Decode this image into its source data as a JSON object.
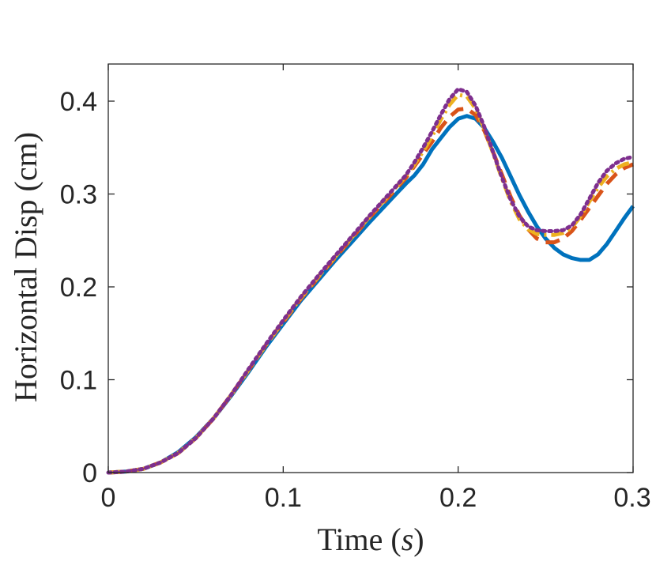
{
  "chart_data": {
    "type": "line",
    "title": "",
    "xlabel_prefix": "Time (",
    "xlabel_var": "s",
    "xlabel_suffix": ")",
    "ylabel": "Horizontal Disp (cm)",
    "xlim": [
      0,
      0.3
    ],
    "ylim": [
      0,
      0.44
    ],
    "xticks": [
      0,
      0.1,
      0.2,
      0.3
    ],
    "xtick_labels": [
      "0",
      "0.1",
      "0.2",
      "0.3"
    ],
    "yticks": [
      0,
      0.1,
      0.2,
      0.3,
      0.4
    ],
    "ytick_labels": [
      "0",
      "0.1",
      "0.2",
      "0.3",
      "0.4"
    ],
    "grid": false,
    "legend": null,
    "series": [
      {
        "name": "series-1",
        "color": "#0072BD",
        "style": "solid",
        "x": [
          0,
          0.01,
          0.02,
          0.03,
          0.04,
          0.05,
          0.06,
          0.07,
          0.08,
          0.09,
          0.1,
          0.11,
          0.12,
          0.13,
          0.14,
          0.15,
          0.16,
          0.17,
          0.175,
          0.18,
          0.185,
          0.19,
          0.195,
          0.2,
          0.205,
          0.21,
          0.215,
          0.22,
          0.225,
          0.23,
          0.235,
          0.24,
          0.245,
          0.25,
          0.255,
          0.26,
          0.265,
          0.27,
          0.275,
          0.28,
          0.285,
          0.29,
          0.295,
          0.3
        ],
        "y": [
          0,
          0.001,
          0.004,
          0.011,
          0.022,
          0.038,
          0.058,
          0.082,
          0.108,
          0.135,
          0.16,
          0.185,
          0.207,
          0.229,
          0.25,
          0.271,
          0.291,
          0.311,
          0.32,
          0.332,
          0.348,
          0.36,
          0.372,
          0.381,
          0.384,
          0.381,
          0.371,
          0.356,
          0.339,
          0.319,
          0.299,
          0.281,
          0.265,
          0.252,
          0.242,
          0.235,
          0.231,
          0.229,
          0.229,
          0.235,
          0.246,
          0.26,
          0.274,
          0.287
        ]
      },
      {
        "name": "series-2",
        "color": "#D95319",
        "style": "dashed",
        "x": [
          0,
          0.01,
          0.02,
          0.03,
          0.04,
          0.05,
          0.06,
          0.07,
          0.08,
          0.09,
          0.1,
          0.11,
          0.12,
          0.13,
          0.14,
          0.15,
          0.16,
          0.17,
          0.175,
          0.18,
          0.185,
          0.19,
          0.195,
          0.2,
          0.205,
          0.21,
          0.215,
          0.22,
          0.225,
          0.23,
          0.235,
          0.24,
          0.245,
          0.25,
          0.255,
          0.26,
          0.265,
          0.27,
          0.275,
          0.28,
          0.285,
          0.29,
          0.295,
          0.3
        ],
        "y": [
          0,
          0.001,
          0.004,
          0.011,
          0.021,
          0.037,
          0.058,
          0.083,
          0.11,
          0.137,
          0.162,
          0.187,
          0.21,
          0.232,
          0.254,
          0.276,
          0.296,
          0.317,
          0.33,
          0.343,
          0.356,
          0.371,
          0.383,
          0.391,
          0.392,
          0.385,
          0.368,
          0.345,
          0.321,
          0.297,
          0.277,
          0.262,
          0.252,
          0.248,
          0.248,
          0.252,
          0.26,
          0.272,
          0.285,
          0.298,
          0.311,
          0.321,
          0.328,
          0.332
        ]
      },
      {
        "name": "series-3",
        "color": "#EDB120",
        "style": "dash-dot",
        "x": [
          0,
          0.01,
          0.02,
          0.03,
          0.04,
          0.05,
          0.06,
          0.07,
          0.08,
          0.09,
          0.1,
          0.11,
          0.12,
          0.13,
          0.14,
          0.15,
          0.16,
          0.17,
          0.175,
          0.18,
          0.185,
          0.19,
          0.195,
          0.2,
          0.205,
          0.21,
          0.215,
          0.22,
          0.225,
          0.23,
          0.235,
          0.24,
          0.245,
          0.25,
          0.255,
          0.26,
          0.265,
          0.27,
          0.275,
          0.28,
          0.285,
          0.29,
          0.295,
          0.3
        ],
        "y": [
          0,
          0.001,
          0.004,
          0.011,
          0.021,
          0.037,
          0.058,
          0.083,
          0.11,
          0.137,
          0.163,
          0.188,
          0.211,
          0.233,
          0.255,
          0.277,
          0.298,
          0.319,
          0.332,
          0.346,
          0.362,
          0.38,
          0.396,
          0.407,
          0.405,
          0.392,
          0.37,
          0.344,
          0.317,
          0.292,
          0.273,
          0.262,
          0.257,
          0.256,
          0.256,
          0.258,
          0.264,
          0.276,
          0.292,
          0.307,
          0.319,
          0.327,
          0.332,
          0.334
        ]
      },
      {
        "name": "series-4",
        "color": "#7E2F8E",
        "style": "dotted",
        "x": [
          0,
          0.01,
          0.02,
          0.03,
          0.04,
          0.05,
          0.06,
          0.07,
          0.08,
          0.09,
          0.1,
          0.11,
          0.12,
          0.13,
          0.14,
          0.15,
          0.16,
          0.17,
          0.175,
          0.18,
          0.185,
          0.19,
          0.195,
          0.2,
          0.205,
          0.21,
          0.215,
          0.22,
          0.225,
          0.23,
          0.235,
          0.24,
          0.245,
          0.25,
          0.255,
          0.26,
          0.265,
          0.27,
          0.275,
          0.28,
          0.285,
          0.29,
          0.295,
          0.3
        ],
        "y": [
          0,
          0.001,
          0.004,
          0.011,
          0.021,
          0.037,
          0.058,
          0.083,
          0.111,
          0.138,
          0.164,
          0.189,
          0.212,
          0.234,
          0.256,
          0.278,
          0.299,
          0.32,
          0.334,
          0.35,
          0.367,
          0.385,
          0.402,
          0.413,
          0.41,
          0.395,
          0.372,
          0.345,
          0.318,
          0.294,
          0.276,
          0.265,
          0.261,
          0.26,
          0.26,
          0.261,
          0.266,
          0.278,
          0.295,
          0.312,
          0.325,
          0.333,
          0.338,
          0.34
        ]
      }
    ]
  }
}
